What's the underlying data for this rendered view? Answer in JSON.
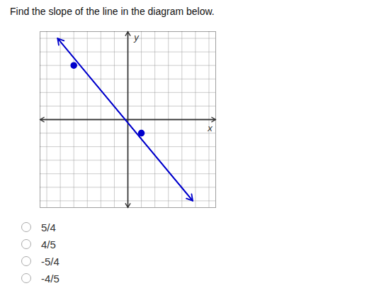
{
  "chart_data": {
    "type": "line",
    "title": "Find the slope of the line in the diagram below.",
    "x_label": "x",
    "y_label": "y",
    "xlim": [
      -6.5,
      6.5
    ],
    "ylim": [
      -6.5,
      6.5
    ],
    "xticks": [
      -6,
      -5,
      -4,
      -3,
      -2,
      -1,
      0,
      1,
      2,
      3,
      4,
      5,
      6
    ],
    "yticks": [
      -6,
      -5,
      -4,
      -3,
      -2,
      -1,
      0,
      1,
      2,
      3,
      4,
      5,
      6
    ],
    "grid": true,
    "tick_labels": false,
    "series": [
      {
        "type": "line",
        "color": "#0000cc",
        "x": [
          -5.2,
          4.8
        ],
        "values": [
          6.0,
          -6.0
        ]
      },
      {
        "type": "scatter",
        "color": "#0000cc",
        "marker": "circle",
        "x": [
          -4,
          1
        ],
        "values": [
          4,
          -1
        ]
      }
    ],
    "annotations": [
      "5/4",
      "4/5",
      "-5/4",
      "-4/5"
    ]
  }
}
